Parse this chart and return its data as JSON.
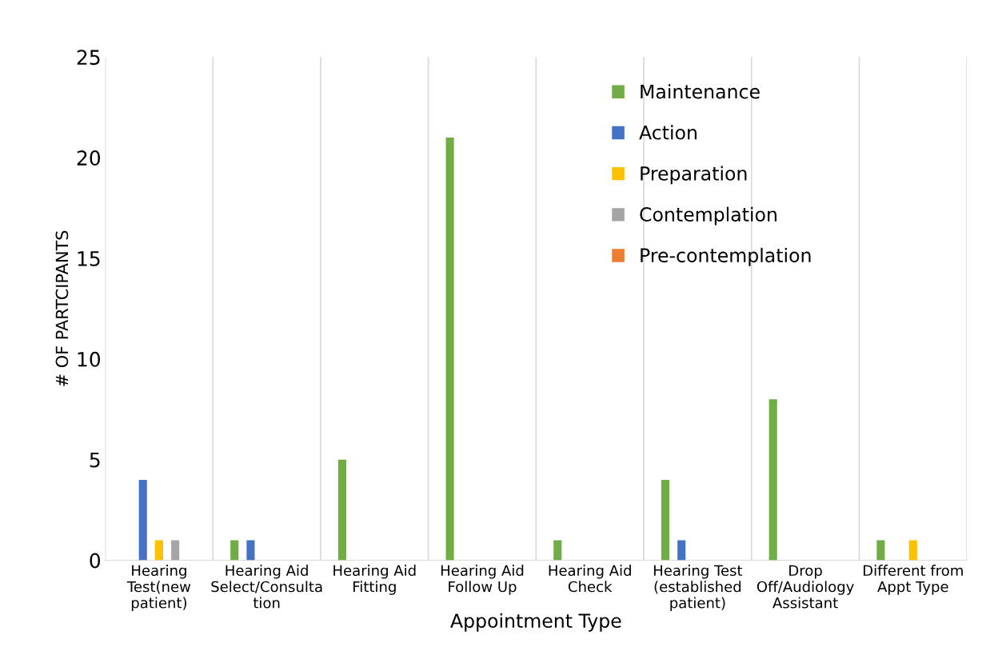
{
  "chart_data": {
    "type": "bar",
    "xlabel": "Appointment Type",
    "ylabel": "# OF PARTCIPANTS",
    "categories": [
      "Hearing\nTest(new\npatient)",
      "Hearing Aid\nSelect/Consulta\ntion",
      "Hearing Aid\nFitting",
      "Hearing Aid\nFollow Up",
      "Hearing Aid\nCheck",
      "Hearing Test\n(established\npatient)",
      "Drop\nOff/Audiology\nAssistant",
      "Different from\nAppt Type"
    ],
    "series": [
      {
        "name": "Maintenance",
        "color": "#70ad47",
        "values": [
          0,
          1,
          5,
          21,
          1,
          4,
          8,
          1
        ]
      },
      {
        "name": "Action",
        "color": "#4472c4",
        "values": [
          4,
          1,
          0,
          0,
          0,
          1,
          0,
          0
        ]
      },
      {
        "name": "Preparation",
        "color": "#ffc000",
        "values": [
          1,
          0,
          0,
          0,
          0,
          0,
          0,
          1
        ]
      },
      {
        "name": "Contemplation",
        "color": "#a5a5a5",
        "values": [
          1,
          0,
          0,
          0,
          0,
          0,
          0,
          0
        ]
      },
      {
        "name": "Pre-contemplation",
        "color": "#ed7d31",
        "values": [
          0,
          0,
          0,
          0,
          0,
          0,
          0,
          0
        ]
      }
    ],
    "ylim": [
      0,
      25
    ],
    "yticks": [
      0,
      5,
      10,
      15,
      20,
      25
    ],
    "grid": "x",
    "legend": "top right"
  }
}
